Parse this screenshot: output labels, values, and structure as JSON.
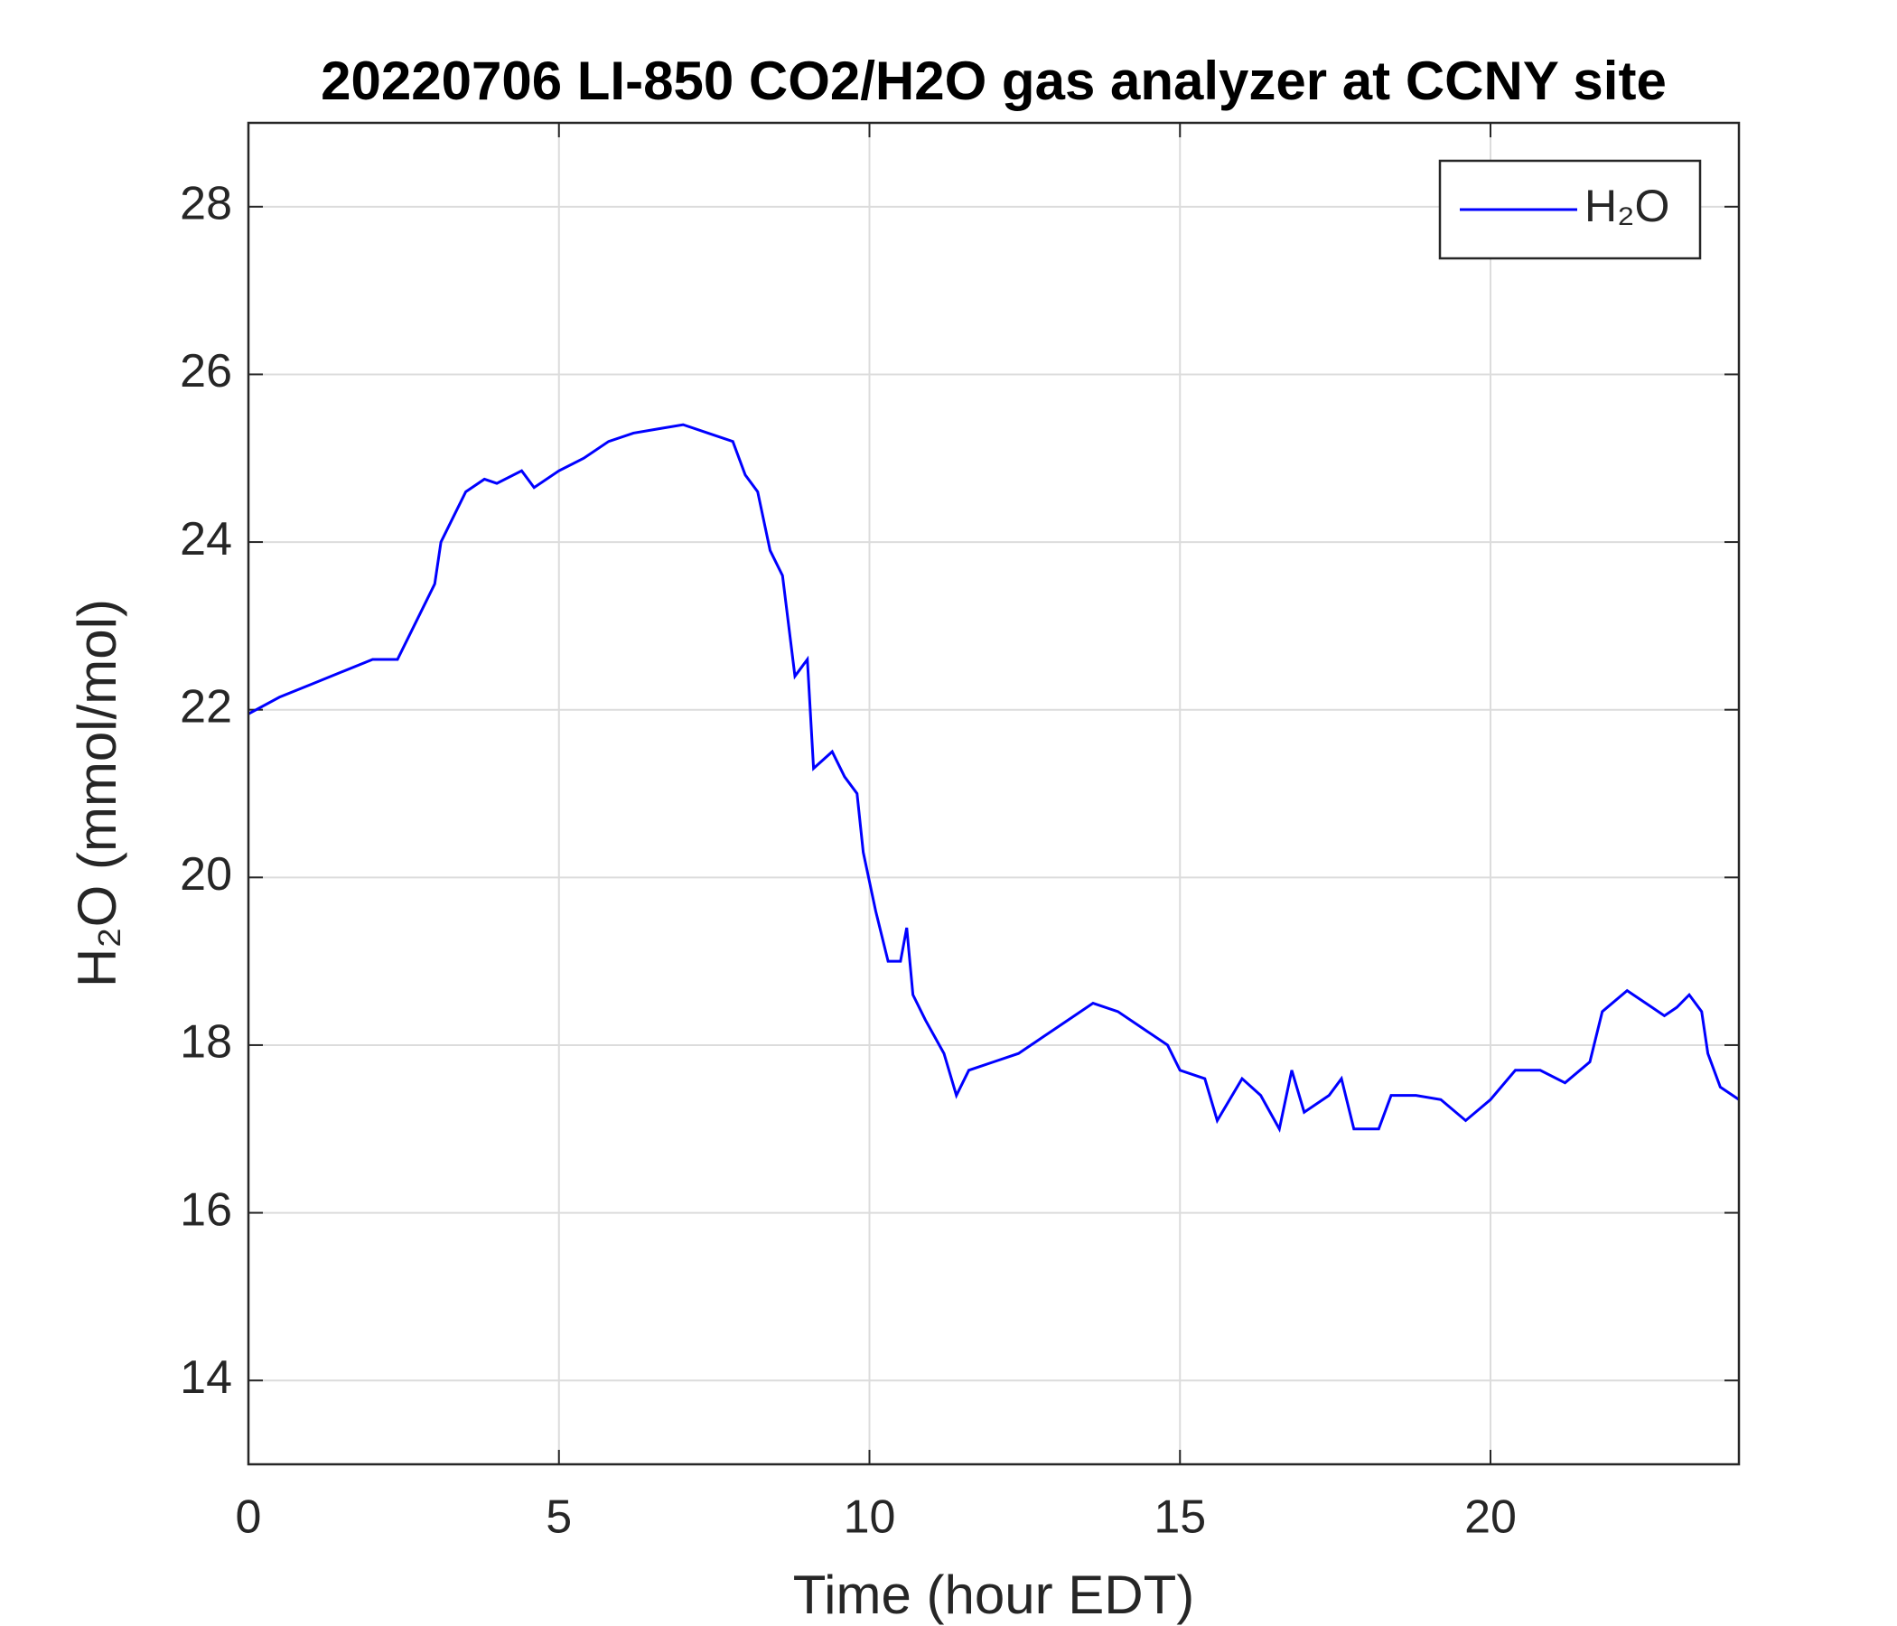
{
  "chart_data": {
    "type": "line",
    "title": "20220706 LI-850 CO2/H2O gas analyzer at CCNY site",
    "xlabel": "Time (hour EDT)",
    "ylabel": "H₂O (mmol/mol)",
    "x": [
      0,
      0.5,
      1,
      1.5,
      2,
      2.4,
      2.6,
      2.8,
      3.0,
      3.1,
      3.3,
      3.5,
      3.8,
      4.0,
      4.4,
      4.6,
      5.0,
      5.4,
      5.8,
      6.2,
      6.6,
      7.0,
      7.4,
      7.8,
      8.0,
      8.2,
      8.4,
      8.6,
      8.8,
      9.0,
      9.1,
      9.4,
      9.6,
      9.8,
      9.9,
      10.1,
      10.3,
      10.5,
      10.6,
      10.7,
      10.9,
      11.2,
      11.4,
      11.6,
      12.0,
      12.4,
      12.8,
      13.2,
      13.6,
      14.0,
      14.4,
      14.8,
      15.0,
      15.4,
      15.6,
      16.0,
      16.3,
      16.6,
      16.8,
      17.0,
      17.4,
      17.6,
      17.8,
      18.2,
      18.4,
      18.8,
      19.2,
      19.6,
      20.0,
      20.4,
      20.8,
      21.2,
      21.6,
      21.8,
      22.2,
      22.6,
      22.8,
      23.0,
      23.2,
      23.4,
      23.5,
      23.7,
      24.0
    ],
    "series": [
      {
        "name": "H₂O",
        "color": "#0000ff",
        "values": [
          21.95,
          22.15,
          22.3,
          22.45,
          22.6,
          22.6,
          22.9,
          23.2,
          23.5,
          24.0,
          24.3,
          24.6,
          24.75,
          24.7,
          24.85,
          24.65,
          24.85,
          25.0,
          25.2,
          25.3,
          25.35,
          25.4,
          25.3,
          25.2,
          24.8,
          24.6,
          23.9,
          23.6,
          22.4,
          22.6,
          21.3,
          21.5,
          21.2,
          21.0,
          20.3,
          19.6,
          19.0,
          19.0,
          19.4,
          18.6,
          18.3,
          17.9,
          17.4,
          17.7,
          17.8,
          17.9,
          18.1,
          18.3,
          18.5,
          18.4,
          18.2,
          18.0,
          17.7,
          17.6,
          17.1,
          17.6,
          17.4,
          17.0,
          17.7,
          17.2,
          17.4,
          17.6,
          17.0,
          17.0,
          17.4,
          17.4,
          17.35,
          17.1,
          17.35,
          17.7,
          17.7,
          17.55,
          17.8,
          18.4,
          18.65,
          18.45,
          18.35,
          18.45,
          18.6,
          18.4,
          17.9,
          17.5,
          17.35
        ]
      }
    ],
    "xlim": [
      0,
      24
    ],
    "xticks": [
      0,
      5,
      10,
      15,
      20
    ],
    "ylim": [
      13,
      29
    ],
    "yticks": [
      14,
      16,
      18,
      20,
      22,
      24,
      26,
      28
    ],
    "grid": true,
    "legend": "upper right"
  }
}
